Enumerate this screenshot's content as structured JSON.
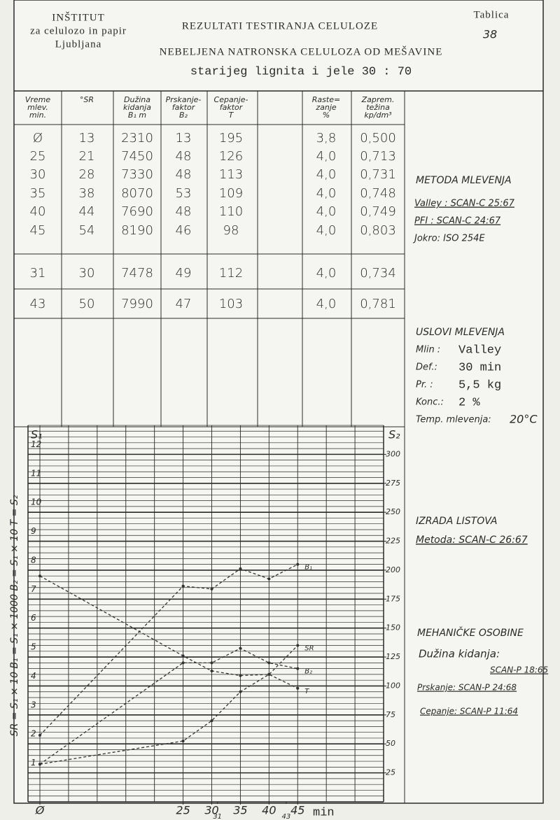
{
  "header": {
    "institute": [
      "INŠTITUT",
      "za celulozo in papir",
      "Ljubljana"
    ],
    "title": "REZULTATI TESTIRANJA CELULOZE",
    "subtitle": [
      "NEBELJENA NATRONSKA CELULOZA OD MEŠAVINE",
      "starijeg lignita i jele 30 : 70"
    ],
    "table_label": "Tablica",
    "table_number": "38"
  },
  "table": {
    "columns": [
      [
        "Vreme",
        "mlev.",
        "min."
      ],
      [
        "°SR"
      ],
      [
        "Dužina",
        "kidanja",
        "B₁  m"
      ],
      [
        "Prskanje-",
        "faktor",
        "B₂"
      ],
      [
        "Cepanje-",
        "faktor",
        "T"
      ],
      [
        "Raste=",
        "zanje",
        "%"
      ],
      [
        "Zaprem.",
        "težina",
        "kp/dm³"
      ]
    ],
    "rows": [
      [
        "Ø",
        "13",
        "2310",
        "13",
        "195",
        "3,8",
        "0,500"
      ],
      [
        "25",
        "21",
        "7450",
        "48",
        "126",
        "4,0",
        "0,713"
      ],
      [
        "30",
        "28",
        "7330",
        "48",
        "113",
        "4,0",
        "0,731"
      ],
      [
        "35",
        "38",
        "8070",
        "53",
        "109",
        "4,0",
        "0,748"
      ],
      [
        "40",
        "44",
        "7690",
        "48",
        "110",
        "4,0",
        "0,749"
      ],
      [
        "45",
        "54",
        "8190",
        "46",
        "98",
        "4,0",
        "0,803"
      ],
      [
        "31",
        "30",
        "7478",
        "49",
        "112",
        "4,0",
        "0,734"
      ],
      [
        "43",
        "50",
        "7990",
        "47",
        "103",
        "4,0",
        "0,781"
      ]
    ]
  },
  "notes": {
    "method": {
      "title": "METODA MLEVENJA",
      "lines": [
        "Valley : SCAN-C 25:67",
        "PFI  : SCAN-C 24:67",
        "Jokro: ISO 254E"
      ]
    },
    "conditions": {
      "title": "USLOVI MLEVENJA",
      "items": [
        [
          "Mlin :",
          "Valley"
        ],
        [
          "Def.:",
          "30 min"
        ],
        [
          "Pr. :",
          "5,5 kg"
        ],
        [
          "Konc.:",
          "2 %"
        ],
        [
          "Temp. mlevenja:",
          "20°C"
        ]
      ]
    },
    "sheets": {
      "title": "IZRADA LISTOVA",
      "lines": [
        "Metoda: SCAN-C 26:67"
      ]
    },
    "mechanical": {
      "title": "MEHANIČKE OSOBINE",
      "lines": [
        "Dužina kidanja:",
        "SCAN-P 18:65",
        "Prskanje: SCAN-P 24:68",
        "Cepanje: SCAN-P 11:64"
      ]
    }
  },
  "chart": {
    "type": "line",
    "y_label": "S₁",
    "y2_label": "S₂",
    "side_label": "SR = S₁ × 10    B₁ = S₁ × 1000    B₂ = S₁ × 10    T = S₂",
    "x_label": "min",
    "x": [
      0,
      25,
      30,
      35,
      40,
      45
    ],
    "xlim": [
      0,
      60
    ],
    "xticks": [
      {
        "value": 0,
        "label": "Ø"
      },
      25,
      30,
      35,
      40,
      45
    ],
    "xticks_minor": [
      31,
      43
    ],
    "ylim": [
      0,
      13
    ],
    "yticks": [
      1,
      2,
      3,
      4,
      5,
      6,
      7,
      8,
      9,
      10,
      11,
      12
    ],
    "y2lim": [
      0,
      325
    ],
    "y2ticks": [
      25,
      50,
      75,
      100,
      125,
      150,
      175,
      200,
      225,
      250,
      275,
      300
    ],
    "series": [
      {
        "name": "B₁",
        "values": [
          2.3,
          7.45,
          7.35,
          8.05,
          7.7,
          8.2
        ]
      },
      {
        "name": "SR",
        "values": [
          1.3,
          2.1,
          2.8,
          3.8,
          4.4,
          5.4
        ]
      },
      {
        "name": "B₂",
        "values": [
          1.3,
          4.8,
          4.8,
          5.3,
          4.8,
          4.6
        ]
      },
      {
        "name": "T",
        "axis": "y2",
        "values": [
          195,
          126,
          113,
          109,
          110,
          98
        ]
      }
    ]
  }
}
